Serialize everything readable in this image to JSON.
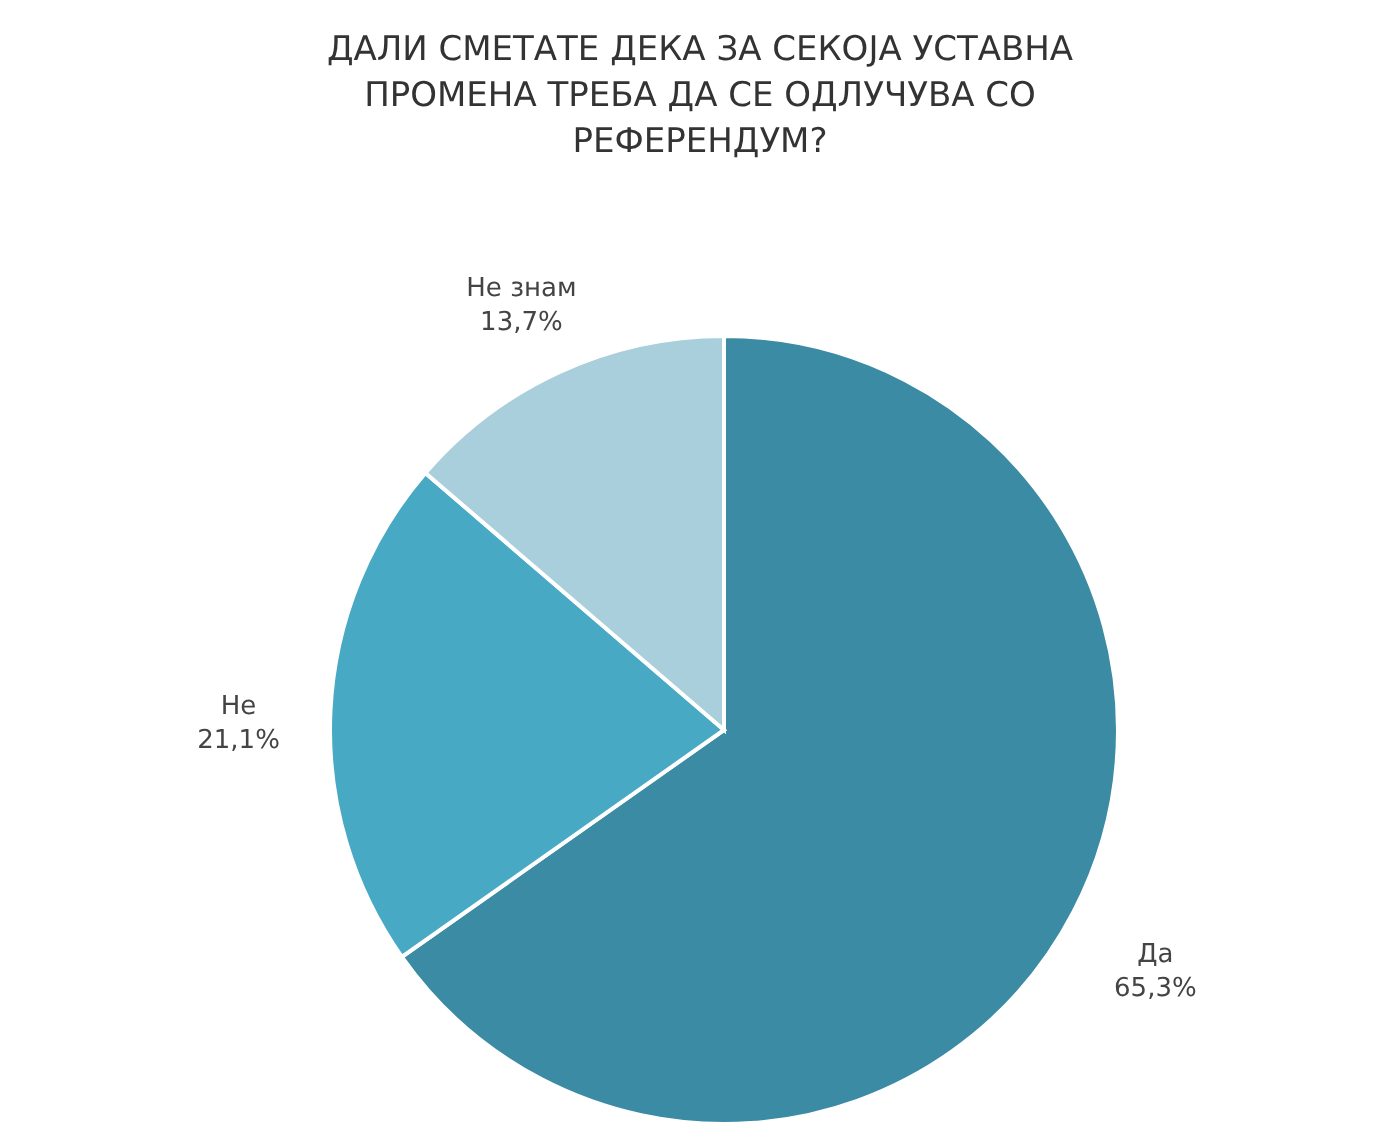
{
  "chart_data": {
    "type": "pie",
    "title": "ДАЛИ СМЕТАТЕ ДЕКА ЗА СЕКОЈА УСТАВНА ПРОМЕНА ТРЕБА ДА СЕ ОДЛУЧУВА СО РЕФЕРЕНДУМ?",
    "categories": [
      "Да",
      "Не",
      "Не знам"
    ],
    "values": [
      65.3,
      21.1,
      13.7
    ],
    "value_labels": [
      "65,3%",
      "21,1%",
      "13,7%"
    ],
    "colors": [
      "#3a8ba3",
      "#48a9c5",
      "#a9cfdc"
    ]
  }
}
